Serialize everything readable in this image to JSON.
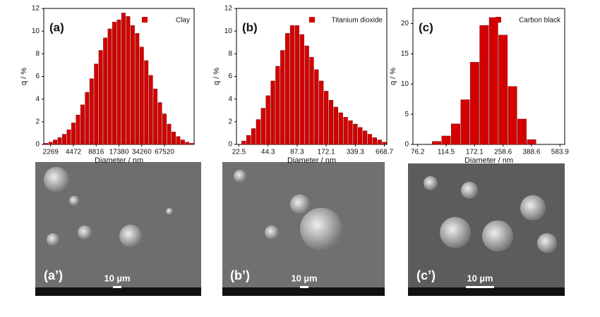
{
  "chart_data": [
    {
      "type": "bar",
      "label": "(a)",
      "xlabel": "Diameter / nm",
      "ylabel": "q / %",
      "categories": [
        null,
        "2269",
        null,
        null,
        null,
        null,
        "4472",
        null,
        null,
        null,
        null,
        "8816",
        null,
        null,
        null,
        null,
        "17380",
        null,
        null,
        null,
        null,
        "34260",
        null,
        null,
        null,
        null,
        "67520",
        null,
        null,
        null,
        null,
        null,
        null
      ],
      "series": [
        {
          "name": "Clay",
          "color": "#d40000",
          "values": [
            0.1,
            0.2,
            0.4,
            0.6,
            0.9,
            1.3,
            1.9,
            2.6,
            3.5,
            4.6,
            5.8,
            7.1,
            8.3,
            9.4,
            10.2,
            10.8,
            11.0,
            11.6,
            11.3,
            10.5,
            9.8,
            8.6,
            7.4,
            6.1,
            4.9,
            3.7,
            2.7,
            1.8,
            1.1,
            0.7,
            0.4,
            0.2,
            0.1
          ]
        }
      ],
      "ylim": [
        0,
        12
      ],
      "yticks": [
        0,
        2,
        4,
        6,
        8,
        10,
        12
      ]
    },
    {
      "type": "bar",
      "label": "(b)",
      "xlabel": "Diameter / nm",
      "ylabel": "q / %",
      "categories": [
        "22.5",
        null,
        null,
        null,
        null,
        null,
        "44.3",
        null,
        null,
        null,
        null,
        null,
        "87.3",
        null,
        null,
        null,
        null,
        null,
        "172.1",
        null,
        null,
        null,
        null,
        null,
        "339.3",
        null,
        null,
        null,
        null,
        null,
        "668.7"
      ],
      "series": [
        {
          "name": "Titanium dioxide",
          "color": "#d40000",
          "values": [
            0,
            0.3,
            0.8,
            1.4,
            2.2,
            3.2,
            4.3,
            5.6,
            6.9,
            8.3,
            9.8,
            10.5,
            10.5,
            9.7,
            8.7,
            7.7,
            6.6,
            5.6,
            4.7,
            3.9,
            3.3,
            2.8,
            2.4,
            2.1,
            1.8,
            1.5,
            1.2,
            0.9,
            0.6,
            0.4,
            0.2
          ]
        }
      ],
      "ylim": [
        0,
        12
      ],
      "yticks": [
        0,
        2,
        4,
        6,
        8,
        10,
        12
      ]
    },
    {
      "type": "bar",
      "label": "(c)",
      "xlabel": "Diameter / nm",
      "ylabel": "q / %",
      "categories": [
        "76.2",
        null,
        null,
        "114.5",
        null,
        null,
        "172.1",
        null,
        null,
        "258.6",
        null,
        null,
        "388.6",
        null,
        null,
        "583.9"
      ],
      "series": [
        {
          "name": "Carbon black",
          "color": "#d40000",
          "values": [
            0,
            0,
            0.5,
            1.4,
            3.4,
            7.4,
            13.6,
            19.7,
            21.0,
            18.1,
            9.6,
            4.2,
            0.8,
            0,
            0,
            0
          ]
        }
      ],
      "ylim": [
        0,
        22.5
      ],
      "yticks": [
        0,
        5,
        10,
        15,
        20
      ]
    }
  ],
  "images": [
    {
      "label": "(a’)",
      "scale_bar": "10 µm"
    },
    {
      "label": "(b’)",
      "scale_bar": "10 µm"
    },
    {
      "label": "(c’)",
      "scale_bar": "10 µm"
    }
  ]
}
